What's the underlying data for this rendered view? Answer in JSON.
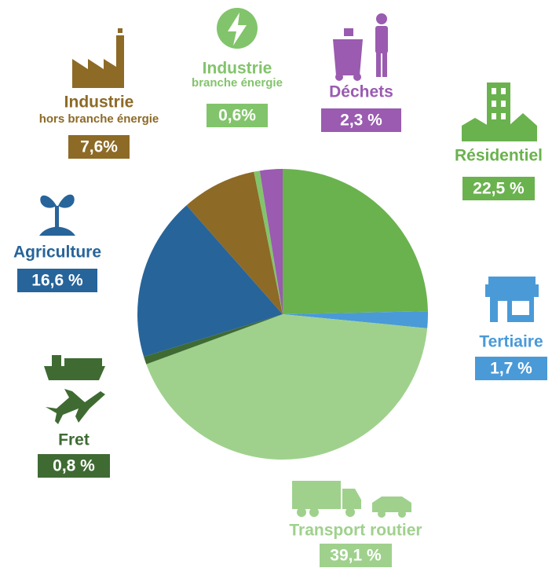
{
  "chart_data": {
    "type": "pie",
    "categories": [
      "Résidentiel",
      "Tertiaire",
      "Transport routier",
      "Fret",
      "Agriculture",
      "Industrie",
      "Industrie",
      "Déchets"
    ],
    "category_sublabels": [
      null,
      null,
      null,
      null,
      null,
      "hors branche énergie",
      "branche énergie",
      null
    ],
    "values": [
      22.5,
      1.7,
      39.1,
      0.8,
      16.6,
      7.6,
      0.6,
      2.3
    ],
    "value_labels": [
      "22,5 %",
      "1,7 %",
      "39,1 %",
      "0,8 %",
      "16,6 %",
      "7,6%",
      "0,6%",
      "2,3 %"
    ],
    "colors": [
      "#6ab24e",
      "#4a9ad8",
      "#9fd18d",
      "#3f6b33",
      "#27649a",
      "#8d6a26",
      "#82c46b",
      "#9a5bb0"
    ]
  }
}
